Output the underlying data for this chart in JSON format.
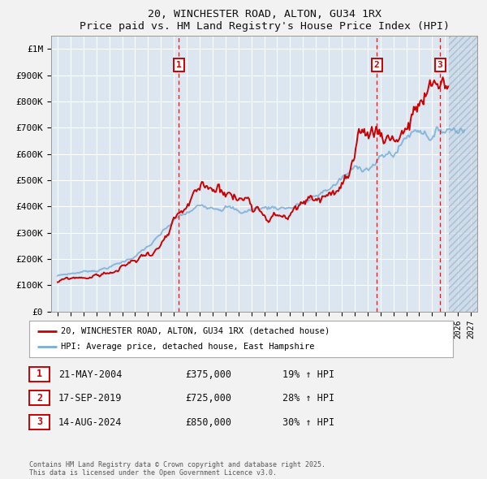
{
  "title1": "20, WINCHESTER ROAD, ALTON, GU34 1RX",
  "title2": "Price paid vs. HM Land Registry's House Price Index (HPI)",
  "ylabel_ticks": [
    "£0",
    "£100K",
    "£200K",
    "£300K",
    "£400K",
    "£500K",
    "£600K",
    "£700K",
    "£800K",
    "£900K",
    "£1M"
  ],
  "ytick_vals": [
    0,
    100000,
    200000,
    300000,
    400000,
    500000,
    600000,
    700000,
    800000,
    900000,
    1000000
  ],
  "ylim": [
    0,
    1050000
  ],
  "xlim_start": 1994.5,
  "xlim_end": 2027.5,
  "bg_color": "#dce6f1",
  "fig_bg": "#f2f2f2",
  "grid_color": "#ffffff",
  "sale_color": "#cc0000",
  "hpi_color": "#7aaed6",
  "sale_label": "20, WINCHESTER ROAD, ALTON, GU34 1RX (detached house)",
  "hpi_label": "HPI: Average price, detached house, East Hampshire",
  "transactions": [
    {
      "num": 1,
      "date": "21-MAY-2004",
      "price": 375000,
      "pct": "19%",
      "x": 2004.38
    },
    {
      "num": 2,
      "date": "17-SEP-2019",
      "price": 725000,
      "pct": "28%",
      "x": 2019.71
    },
    {
      "num": 3,
      "date": "14-AUG-2024",
      "price": 850000,
      "pct": "30%",
      "x": 2024.62
    }
  ],
  "footer": "Contains HM Land Registry data © Crown copyright and database right 2025.\nThis data is licensed under the Open Government Licence v3.0.",
  "hatch_start": 2025.3,
  "hatch_end": 2027.5
}
